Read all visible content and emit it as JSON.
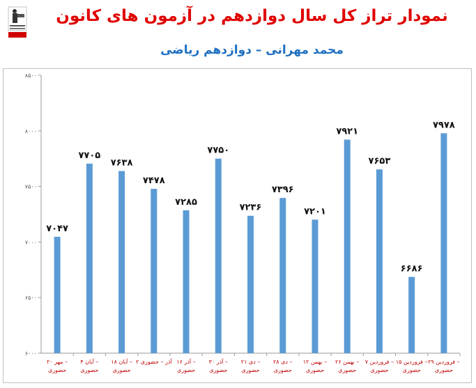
{
  "title": "نمودار تراز کل سال دوازدهم در آزمون های کانون",
  "subtitle": "محمد مهرانی – دوازدهم ریاضی",
  "colors": {
    "title": "#e00000",
    "subtitle": "#1e6fc0",
    "bar": "#5b9bd5",
    "category": "#c00000"
  },
  "chart_data": {
    "type": "bar",
    "title": "نمودار تراز کل سال دوازدهم در آزمون های کانون",
    "subtitle": "محمد مهرانی – دوازدهم ریاضی",
    "categories": [
      [
        "۲۰ مهر –",
        "حضوری"
      ],
      [
        "۴ آبان –",
        "حضوری"
      ],
      [
        "۱۸ آبان –",
        "حضوری"
      ],
      [
        "۲ آذر – حضوری"
      ],
      [
        "۱۶ آذر –",
        "حضوری"
      ],
      [
        "۳۰ آذر –",
        "حضوری"
      ],
      [
        "۲۱ دی –",
        "حضوری"
      ],
      [
        "۲۸ دی –",
        "حضوری"
      ],
      [
        "۱۲ بهمن –",
        "حضوری"
      ],
      [
        "۲۶ بهمن –",
        "حضوری"
      ],
      [
        "۷ فروردین –",
        "حضوری"
      ],
      [
        "۱۵ فروردین –",
        "حضوری"
      ],
      [
        "۲۹ فروردین –",
        "حضوری"
      ]
    ],
    "values": [
      7047,
      7705,
      7638,
      7478,
      7285,
      7750,
      7236,
      7396,
      7201,
      7921,
      7653,
      6686,
      7978
    ],
    "value_labels": [
      "۷۰۴۷",
      "۷۷۰۵",
      "۷۶۳۸",
      "۷۴۷۸",
      "۷۲۸۵",
      "۷۷۵۰",
      "۷۲۳۶",
      "۷۳۹۶",
      "۷۲۰۱",
      "۷۹۲۱",
      "۷۶۵۳",
      "۶۶۸۶",
      "۷۹۷۸"
    ],
    "ylim": [
      6000,
      8500
    ],
    "yticks": [
      6000,
      6500,
      7000,
      7500,
      8000,
      8500
    ],
    "ytick_labels": [
      "۶۰۰۰",
      "۶۵۰۰",
      "۷۰۰۰",
      "۷۵۰۰",
      "۸۰۰۰",
      "۸۵۰۰"
    ],
    "grid": false,
    "legend": "none"
  }
}
